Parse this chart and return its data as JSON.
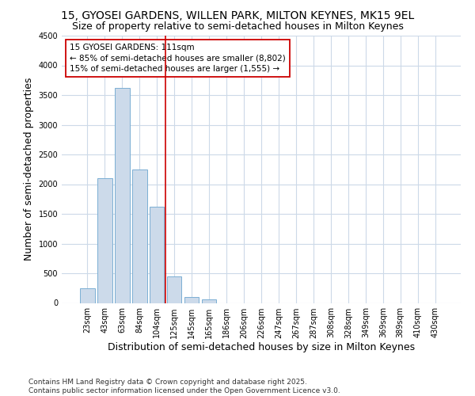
{
  "title_line1": "15, GYOSEI GARDENS, WILLEN PARK, MILTON KEYNES, MK15 9EL",
  "title_line2": "Size of property relative to semi-detached houses in Milton Keynes",
  "xlabel": "Distribution of semi-detached houses by size in Milton Keynes",
  "ylabel": "Number of semi-detached properties",
  "categories": [
    "23sqm",
    "43sqm",
    "63sqm",
    "84sqm",
    "104sqm",
    "125sqm",
    "145sqm",
    "165sqm",
    "186sqm",
    "206sqm",
    "226sqm",
    "247sqm",
    "267sqm",
    "287sqm",
    "308sqm",
    "328sqm",
    "349sqm",
    "369sqm",
    "389sqm",
    "410sqm",
    "430sqm"
  ],
  "values": [
    250,
    2100,
    3620,
    2250,
    1625,
    450,
    100,
    60,
    0,
    0,
    0,
    0,
    0,
    0,
    0,
    0,
    0,
    0,
    0,
    0,
    0
  ],
  "bar_color": "#ccdaea",
  "bar_edge_color": "#7bafd4",
  "vline_color": "#cc0000",
  "vline_index": 4.5,
  "annotation_line1": "15 GYOSEI GARDENS: 111sqm",
  "annotation_line2": "← 85% of semi-detached houses are smaller (8,802)",
  "annotation_line3": "15% of semi-detached houses are larger (1,555) →",
  "annotation_box_color": "#ffffff",
  "annotation_box_edge": "#cc0000",
  "ylim": [
    0,
    4500
  ],
  "yticks": [
    0,
    500,
    1000,
    1500,
    2000,
    2500,
    3000,
    3500,
    4000,
    4500
  ],
  "footnote": "Contains HM Land Registry data © Crown copyright and database right 2025.\nContains public sector information licensed under the Open Government Licence v3.0.",
  "bg_color": "#ffffff",
  "grid_color": "#ccd9e8",
  "title_fontsize": 10,
  "subtitle_fontsize": 9,
  "axis_label_fontsize": 9,
  "tick_fontsize": 7,
  "footnote_fontsize": 6.5,
  "annotation_fontsize": 7.5
}
